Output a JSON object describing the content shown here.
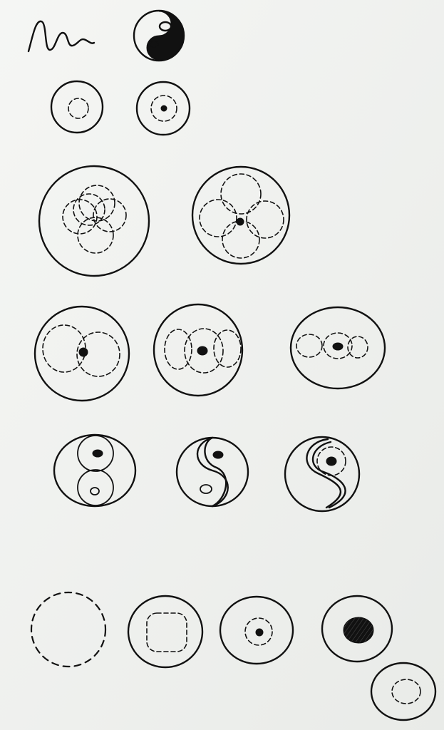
{
  "sheet": {
    "paper_color": "#f1f2f0",
    "ink_color": "#111111",
    "motifs": [
      "wavy-signature",
      "yin-yang",
      "concentric-circles",
      "overlapping-circle-rosettes",
      "three-circle-rows",
      "dotted-circle",
      "circle-with-dark-core"
    ]
  }
}
